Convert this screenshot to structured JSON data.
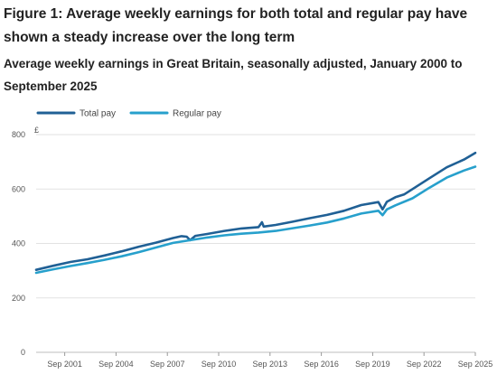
{
  "figure": {
    "title": "Figure 1: Average weekly earnings for both total and regular pay have shown a steady increase over the long term",
    "subtitle": "Average weekly earnings in Great Britain, seasonally adjusted, January 2000 to September 2025"
  },
  "chart_data": {
    "type": "line",
    "ylabel": "£",
    "ylim": [
      0,
      800
    ],
    "yticks": [
      0,
      200,
      400,
      600,
      800
    ],
    "xlim": [
      2000.0,
      2025.67
    ],
    "xtick_labels": [
      "Sep 2001",
      "Sep 2004",
      "Sep 2007",
      "Sep 2010",
      "Sep 2013",
      "Sep 2016",
      "Sep 2019",
      "Sep 2022",
      "Sep 2025"
    ],
    "xtick_positions": [
      2001.67,
      2004.67,
      2007.67,
      2010.67,
      2013.67,
      2016.67,
      2019.67,
      2022.67,
      2025.67
    ],
    "grid": true,
    "legend_position": "top-left",
    "series": [
      {
        "name": "Total pay",
        "color": "#206095",
        "points": [
          [
            2000.0,
            303
          ],
          [
            2001.0,
            318
          ],
          [
            2002.0,
            332
          ],
          [
            2003.0,
            342
          ],
          [
            2004.0,
            356
          ],
          [
            2005.0,
            371
          ],
          [
            2006.0,
            388
          ],
          [
            2007.0,
            403
          ],
          [
            2008.0,
            420
          ],
          [
            2008.5,
            427
          ],
          [
            2008.8,
            425
          ],
          [
            2009.0,
            412
          ],
          [
            2009.3,
            428
          ],
          [
            2010.0,
            435
          ],
          [
            2011.0,
            446
          ],
          [
            2012.0,
            455
          ],
          [
            2013.0,
            460
          ],
          [
            2013.2,
            478
          ],
          [
            2013.3,
            462
          ],
          [
            2014.0,
            468
          ],
          [
            2015.0,
            480
          ],
          [
            2016.0,
            493
          ],
          [
            2017.0,
            505
          ],
          [
            2018.0,
            520
          ],
          [
            2019.0,
            541
          ],
          [
            2020.0,
            552
          ],
          [
            2020.25,
            525
          ],
          [
            2020.5,
            553
          ],
          [
            2021.0,
            570
          ],
          [
            2021.5,
            580
          ],
          [
            2022.0,
            600
          ],
          [
            2023.0,
            640
          ],
          [
            2024.0,
            680
          ],
          [
            2025.0,
            708
          ],
          [
            2025.67,
            733
          ]
        ]
      },
      {
        "name": "Regular pay",
        "color": "#27a0cc",
        "points": [
          [
            2000.0,
            292
          ],
          [
            2001.0,
            305
          ],
          [
            2002.0,
            317
          ],
          [
            2003.0,
            328
          ],
          [
            2004.0,
            340
          ],
          [
            2005.0,
            353
          ],
          [
            2006.0,
            368
          ],
          [
            2007.0,
            385
          ],
          [
            2008.0,
            402
          ],
          [
            2009.0,
            412
          ],
          [
            2010.0,
            422
          ],
          [
            2011.0,
            430
          ],
          [
            2012.0,
            436
          ],
          [
            2013.0,
            440
          ],
          [
            2014.0,
            446
          ],
          [
            2015.0,
            456
          ],
          [
            2016.0,
            466
          ],
          [
            2017.0,
            477
          ],
          [
            2018.0,
            492
          ],
          [
            2019.0,
            510
          ],
          [
            2020.0,
            520
          ],
          [
            2020.25,
            504
          ],
          [
            2020.5,
            525
          ],
          [
            2021.0,
            540
          ],
          [
            2022.0,
            566
          ],
          [
            2023.0,
            605
          ],
          [
            2024.0,
            642
          ],
          [
            2025.0,
            668
          ],
          [
            2025.67,
            682
          ]
        ]
      }
    ]
  }
}
